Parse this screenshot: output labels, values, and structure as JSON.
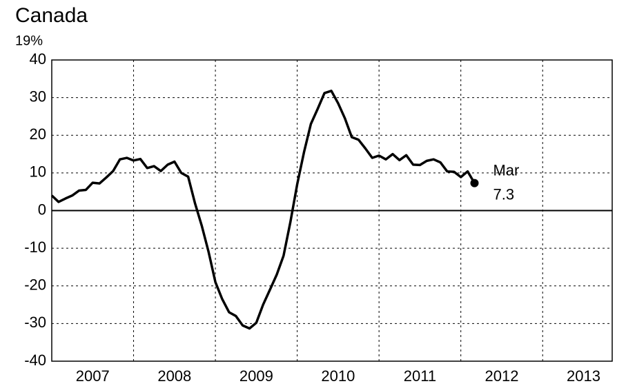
{
  "chart_data": {
    "type": "line",
    "title": "Canada",
    "subtitle": "19%",
    "x": [
      2007,
      2007.083,
      2007.167,
      2007.25,
      2007.333,
      2007.417,
      2007.5,
      2007.583,
      2007.667,
      2007.75,
      2007.833,
      2007.917,
      2008,
      2008.083,
      2008.167,
      2008.25,
      2008.333,
      2008.417,
      2008.5,
      2008.583,
      2008.667,
      2008.75,
      2008.833,
      2008.917,
      2009,
      2009.083,
      2009.167,
      2009.25,
      2009.333,
      2009.417,
      2009.5,
      2009.583,
      2009.667,
      2009.75,
      2009.833,
      2009.917,
      2010,
      2010.083,
      2010.167,
      2010.25,
      2010.333,
      2010.417,
      2010.5,
      2010.583,
      2010.667,
      2010.75,
      2010.833,
      2010.917,
      2011,
      2011.083,
      2011.167,
      2011.25,
      2011.333,
      2011.417,
      2011.5,
      2011.583,
      2011.667,
      2011.75,
      2011.833,
      2011.917,
      2012,
      2012.083,
      2012.167
    ],
    "series": [
      {
        "name": "Canada",
        "color": "#000000",
        "values": [
          4,
          2.3,
          3.2,
          4,
          5.3,
          5.5,
          7.4,
          7.2,
          8.8,
          10.5,
          13.6,
          14,
          13.3,
          13.7,
          11.3,
          11.8,
          10.5,
          12.2,
          13,
          10,
          9,
          2,
          -4,
          -11,
          -19,
          -23.5,
          -27,
          -28,
          -30.5,
          -31.3,
          -29.8,
          -25,
          -21,
          -17,
          -12,
          -3,
          7,
          15.5,
          23,
          27,
          31.2,
          31.8,
          28.5,
          24.5,
          19.5,
          18.8,
          16.5,
          14,
          14.6,
          13.6,
          15,
          13.4,
          14.7,
          12.2,
          12.1,
          13.2,
          13.6,
          12.8,
          10.4,
          10.3,
          8.9,
          10.4,
          7.3
        ]
      }
    ],
    "annotation": "Mar",
    "xlim": [
      2007,
      2013.85
    ],
    "xticks": [
      2007,
      2008,
      2009,
      2010,
      2011,
      2012,
      2013
    ],
    "ylim": [
      -40,
      40
    ],
    "yticks": [
      -40,
      -30,
      -20,
      -10,
      0,
      10,
      20,
      30,
      40
    ],
    "grid": true
  }
}
